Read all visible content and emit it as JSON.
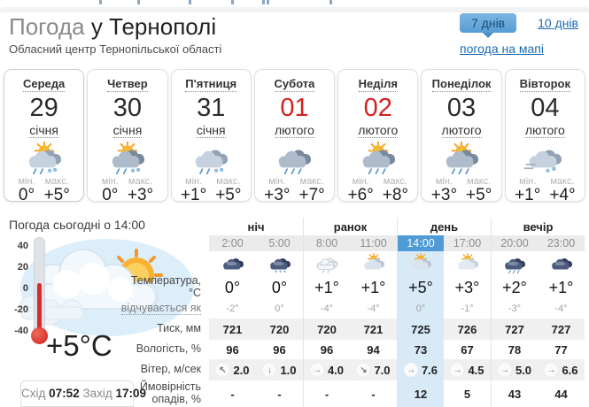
{
  "header": {
    "title_gray": "Погода",
    "title_dark": " у Тернополі",
    "subtitle": "Обласний центр Тернопільської області"
  },
  "range_tabs": {
    "active_label": "7 днів",
    "inactive_label": "10 днів",
    "map_link": "погода на мапі"
  },
  "labels": {
    "min": "мін.",
    "max": "макс."
  },
  "days": [
    {
      "name": "Середа",
      "date": "29",
      "month": "січня",
      "red": false,
      "min": "0°",
      "max": "+5°",
      "icon": {
        "sun": true,
        "cloud": "gray",
        "precip": "sleet"
      }
    },
    {
      "name": "Четвер",
      "date": "30",
      "month": "січня",
      "red": false,
      "min": "0°",
      "max": "+3°",
      "icon": {
        "sun": true,
        "cloud": "dark",
        "precip": "sleet"
      }
    },
    {
      "name": "П'ятниця",
      "date": "31",
      "month": "січня",
      "red": false,
      "min": "+1°",
      "max": "+5°",
      "icon": {
        "sun": false,
        "cloud": "gray",
        "precip": "sleet"
      }
    },
    {
      "name": "Субота",
      "date": "01",
      "month": "лютого",
      "red": true,
      "min": "+3°",
      "max": "+7°",
      "icon": {
        "sun": false,
        "cloud": "dark",
        "precip": "rain"
      }
    },
    {
      "name": "Неділя",
      "date": "02",
      "month": "лютого",
      "red": true,
      "min": "+6°",
      "max": "+8°",
      "icon": {
        "sun": true,
        "cloud": "dark",
        "precip": "rain"
      }
    },
    {
      "name": "Понеділок",
      "date": "03",
      "month": "лютого",
      "red": false,
      "min": "+3°",
      "max": "+5°",
      "icon": {
        "sun": true,
        "cloud": "dark",
        "precip": "rain"
      }
    },
    {
      "name": "Вівторок",
      "date": "04",
      "month": "лютого",
      "red": false,
      "min": "+1°",
      "max": "+4°",
      "icon": {
        "sun": false,
        "cloud": "gray",
        "precip": "snow-wind"
      }
    }
  ],
  "today": {
    "heading": "Погода сьогодні о 14:00",
    "big_temp": "+5°C",
    "thermometer_scale": [
      "40",
      "20",
      "0",
      "-20",
      "-40"
    ],
    "sunrise_label": "Схід",
    "sunrise": "07:52",
    "sunset_label": "Захід",
    "sunset": "17:09"
  },
  "hourly": {
    "groups": [
      "ніч",
      "ранок",
      "день",
      "вечір"
    ],
    "hours": [
      "2:00",
      "5:00",
      "8:00",
      "11:00",
      "14:00",
      "17:00",
      "20:00",
      "23:00"
    ],
    "selected_hour_index": 4,
    "icons": [
      {
        "sun": false,
        "cloud": "night",
        "precip": "none"
      },
      {
        "sun": false,
        "cloud": "night",
        "precip": "snow"
      },
      {
        "sun": false,
        "cloud": "outline",
        "precip": "drizzle"
      },
      {
        "sun": true,
        "cloud": "light",
        "precip": "none"
      },
      {
        "sun": true,
        "cloud": "light",
        "precip": "none"
      },
      {
        "sun": true,
        "cloud": "small",
        "precip": "none"
      },
      {
        "sun": false,
        "cloud": "night",
        "precip": "rain"
      },
      {
        "sun": false,
        "cloud": "night",
        "precip": "none"
      }
    ],
    "rows": [
      {
        "key": "temperature",
        "label": "Температура, °C",
        "style": "temp",
        "alt": false,
        "values": [
          "0°",
          "0°",
          "+1°",
          "+1°",
          "+5°",
          "+3°",
          "+2°",
          "+1°"
        ]
      },
      {
        "key": "feels-like",
        "label": "відчувається як",
        "style": "feels",
        "alt": false,
        "dotted": true,
        "values": [
          "-2°",
          "0°",
          "-4°",
          "-4°",
          "0°",
          "-1°",
          "-3°",
          "-4°"
        ]
      },
      {
        "key": "pressure",
        "label": "Тиск, мм",
        "style": "bold",
        "alt": true,
        "values": [
          "721",
          "720",
          "720",
          "721",
          "725",
          "726",
          "727",
          "727"
        ]
      },
      {
        "key": "humidity",
        "label": "Вологість, %",
        "style": "bold",
        "alt": false,
        "values": [
          "96",
          "96",
          "96",
          "94",
          "73",
          "67",
          "78",
          "77"
        ]
      },
      {
        "key": "wind",
        "label": "Вітер, м/сек",
        "style": "wind",
        "alt": true,
        "values": [
          "2.0",
          "1.0",
          "4.0",
          "7.0",
          "7.6",
          "4.5",
          "5.0",
          "6.6"
        ],
        "arrows": [
          "↖",
          "↓",
          "→",
          "↘",
          "→",
          "→",
          "→",
          "→"
        ]
      },
      {
        "key": "precipitation",
        "label": "Ймовірність опадів, %",
        "style": "bold",
        "alt": false,
        "values": [
          "-",
          "-",
          "-",
          "-",
          "12",
          "5",
          "43",
          "44"
        ]
      }
    ]
  },
  "colors": {
    "accent_blue": "#4f9bd6",
    "selected_column": "#d9eaf7",
    "link_blue": "#1a6bb5",
    "weekend_red": "#d61f1f",
    "alt_row": "#f0f0f0",
    "mercury_red": "#d62c2c"
  }
}
